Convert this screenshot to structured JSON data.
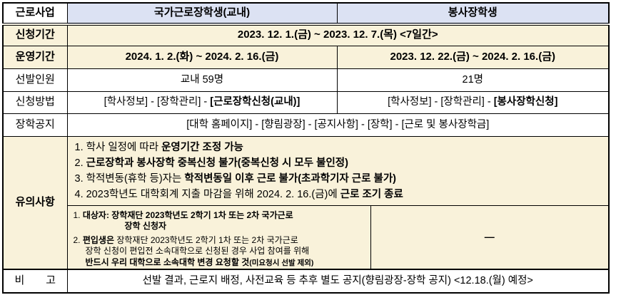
{
  "colors": {
    "cream": "#f9f2da",
    "header_fill": "#dce2f3",
    "border": "#000000"
  },
  "header": {
    "program": "근로사업",
    "national": "국가근로장학생(교내)",
    "volunteer": "봉사장학생"
  },
  "rows": {
    "apply_period": {
      "label": "신청기간",
      "value": "2023. 12. 1.(금) ~ 2023. 12. 7.(목) <7일간>"
    },
    "operate_period": {
      "label": "운영기간",
      "national": "2024. 1. 2.(화) ~ 2024. 2. 16.(금)",
      "volunteer": "2023. 12. 22.(금) ~ 2024. 2. 16.(금)"
    },
    "selected": {
      "label": "선발인원",
      "national": "교내 59명",
      "volunteer": "21명"
    },
    "method": {
      "label": "신청방법",
      "national": [
        {
          "t": "[학사정보] - [장학관리] - "
        },
        {
          "t": "[근로장학신청(교내)]",
          "b": true
        }
      ],
      "volunteer": [
        {
          "t": "[학사정보] - [장학관리] - "
        },
        {
          "t": "[봉사장학신청]",
          "b": true
        }
      ]
    },
    "notice": {
      "label": "장학공지",
      "value": "[대학 홈페이지] - [향림광장] - [공지사항] - [장학] - [근로 및 봉사장학금]"
    },
    "cautions": {
      "label": "유의사항",
      "items": [
        [
          {
            "t": "1. 학사 일정에 따라 "
          },
          {
            "t": "운영기간 조정 가능",
            "b": true
          }
        ],
        [
          {
            "t": "2. "
          },
          {
            "t": "근로장학과 봉사장학 중복신청 불가(중복신청 시 모두 불인정)",
            "b": true
          }
        ],
        [
          {
            "t": "3. 학적변동(휴학 등)자는 "
          },
          {
            "t": "학적변동일 이후 근로 불가(초과학기자 근로 불가)",
            "b": true
          }
        ],
        [
          {
            "t": "4. 2023학년도 대학회계 지출 마감을 위해 2024. 2. 16.(금)에 "
          },
          {
            "t": "근로 조기 종료",
            "b": true
          }
        ]
      ],
      "sub_lines": [
        {
          "ind": 0,
          "segs": [
            {
              "t": "1. "
            },
            {
              "t": "대상자: 장학재단 2023학년도 2학기 1차 또는 2차 국가근로",
              "b": true
            }
          ]
        },
        {
          "ind": 1,
          "segs": [
            {
              "t": "장학 신청자",
              "b": true
            }
          ]
        },
        {
          "ind": 0,
          "gap": true,
          "segs": [
            {
              "t": "2. "
            },
            {
              "t": "편입생은",
              "b": true
            },
            {
              "t": " 장학재단 2023학년도 2학기 1차 또는 2차 국가근로"
            }
          ]
        },
        {
          "ind": 2,
          "segs": [
            {
              "t": "장학 신청이 편입전 소속대학으로 신청된 경우 사업 참여를 위해"
            }
          ]
        },
        {
          "ind": 2,
          "segs": [
            {
              "t": "반드시 우리 대학으로 소속대학 변경 요청할 것",
              "b": true
            },
            {
              "t": "(미요청시 선발 제외)",
              "b": true,
              "sm": true
            }
          ]
        }
      ],
      "sub_right": "—"
    },
    "remark": {
      "label": "비　　고",
      "value": "선발 결과, 근로지 배정, 사전교육 등 추후 별도 공지(향림광장-장학 공지) <12.18.(월) 예정>"
    }
  }
}
